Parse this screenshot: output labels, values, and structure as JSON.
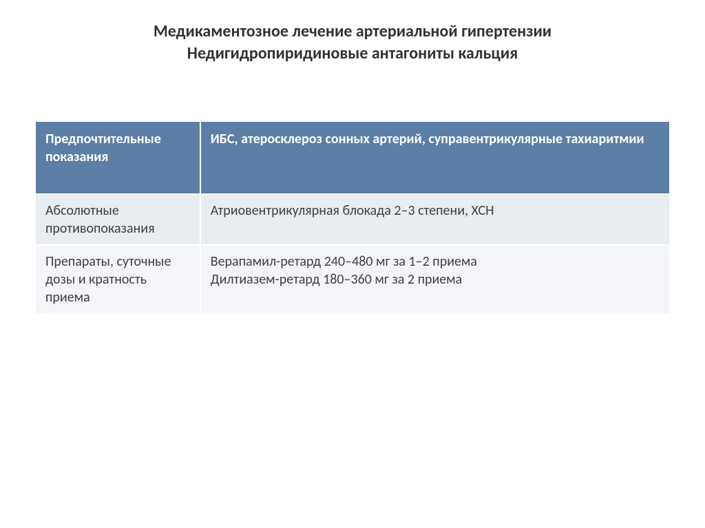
{
  "title": {
    "line1": "Медикаментозное лечение артериальной гипертензии",
    "line2": "Недигидропиридиновые антагониты кальция"
  },
  "table": {
    "colors": {
      "header_bg": "#5b7fa6",
      "header_text": "#ffffff",
      "row_light_bg": "#e9edf2",
      "row_lighter_bg": "#f3f5f8",
      "body_text": "#404040",
      "border": "#ffffff"
    },
    "col_widths": [
      "26%",
      "74%"
    ],
    "rows": [
      {
        "style": "header",
        "left": "Предпочтительные показания",
        "right": "ИБС, атеросклероз сонных артерий, суправентрикулярные тахиаритмии"
      },
      {
        "style": "light",
        "left": "Абсолютные противопоказания",
        "right": "Атриовентрикулярная блокада 2–3 степени, ХСН"
      },
      {
        "style": "lighter",
        "left": "Препараты, суточные дозы и кратность приема",
        "right": "Верапамил-ретард 240–480 мг за 1–2 приема\nДилтиазем-ретард 180–360 мг за 2 приема"
      }
    ]
  }
}
